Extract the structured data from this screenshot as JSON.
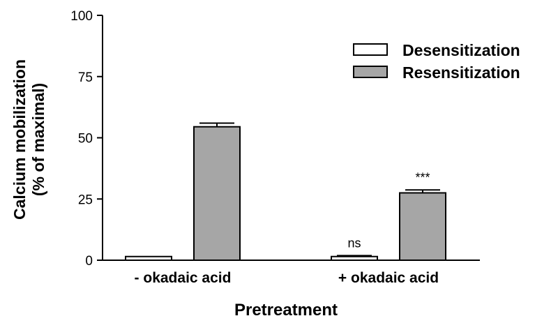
{
  "chart_data": {
    "type": "bar",
    "title": "",
    "xlabel": "Pretreatment",
    "ylabel": [
      "Calcium mobilization",
      "(% of maximal)"
    ],
    "categories": [
      "- okadaic acid",
      "+ okadaic acid"
    ],
    "series": [
      {
        "name": "Desensitization",
        "color": "#ffffff",
        "values": [
          1.5,
          1.5
        ],
        "errors": [
          0,
          0.4
        ]
      },
      {
        "name": "Resensitization",
        "color": "#a6a6a6",
        "values": [
          54.5,
          27.5
        ],
        "errors": [
          1.5,
          1.2
        ]
      }
    ],
    "annotations": [
      {
        "category": 1,
        "series": 0,
        "text": "ns"
      },
      {
        "category": 1,
        "series": 1,
        "text": "***"
      }
    ],
    "yticks": [
      0,
      25,
      50,
      75,
      100
    ],
    "ylim": [
      0,
      100
    ],
    "grid": false,
    "legend_position": "top-right"
  }
}
